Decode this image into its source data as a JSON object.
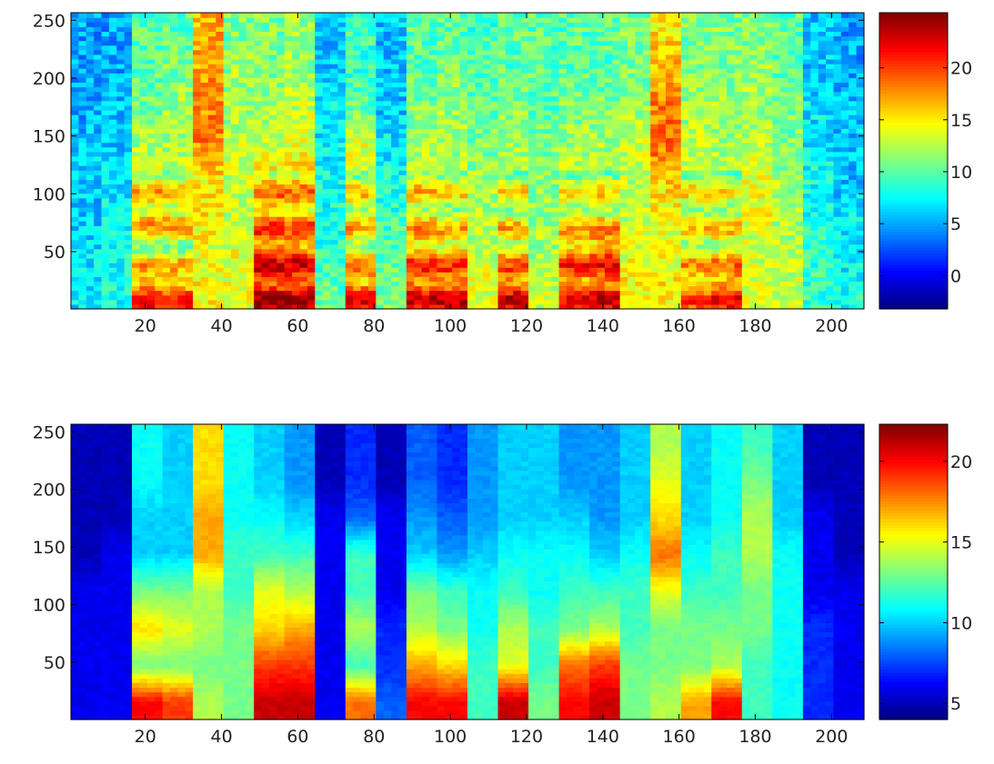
{
  "chart_data": [
    {
      "type": "heatmap",
      "xlim": [
        0.5,
        208.5
      ],
      "ylim": [
        0.5,
        256.5
      ],
      "xticks": [
        "20",
        "40",
        "60",
        "80",
        "100",
        "120",
        "140",
        "160",
        "180",
        "200"
      ],
      "yticks": [
        "50",
        "100",
        "150",
        "200",
        "250"
      ],
      "colormap": "jet",
      "clim": [
        -3.2,
        25.3
      ],
      "colorbar_ticks": [
        "0",
        "5",
        "10",
        "15",
        "20"
      ],
      "x_centers": [
        4,
        12,
        20,
        28,
        36,
        44,
        52,
        60,
        68,
        76,
        84,
        92,
        100,
        108,
        116,
        124,
        132,
        140,
        148,
        156,
        164,
        172,
        180,
        188,
        196,
        204
      ],
      "y_centers": [
        16,
        48,
        80,
        112,
        144,
        176,
        208,
        240
      ],
      "values_by_column": [
        [
          7,
          7,
          6,
          6,
          6,
          5,
          5,
          5
        ],
        [
          8,
          8,
          7,
          7,
          6,
          6,
          5,
          5
        ],
        [
          20,
          13,
          16,
          14,
          12,
          11,
          10,
          10
        ],
        [
          19,
          13,
          16,
          14,
          12,
          12,
          11,
          10
        ],
        [
          15,
          14,
          15,
          15,
          18,
          18,
          17,
          17
        ],
        [
          14,
          14,
          13,
          13,
          13,
          12,
          12,
          11
        ],
        [
          22,
          20,
          18,
          16,
          13,
          12,
          11,
          11
        ],
        [
          22,
          20,
          17,
          16,
          14,
          13,
          12,
          12
        ],
        [
          10,
          9,
          8,
          8,
          7,
          7,
          6,
          6
        ],
        [
          20,
          14,
          15,
          13,
          14,
          10,
          9,
          9
        ],
        [
          11,
          10,
          9,
          8,
          7,
          6,
          6,
          6
        ],
        [
          21,
          18,
          15,
          14,
          12,
          11,
          10,
          10
        ],
        [
          21,
          17,
          14,
          13,
          12,
          12,
          11,
          10
        ],
        [
          14,
          13,
          12,
          12,
          11,
          10,
          10,
          9
        ],
        [
          21,
          16,
          14,
          13,
          12,
          11,
          10,
          10
        ],
        [
          13,
          12,
          12,
          11,
          11,
          10,
          10,
          10
        ],
        [
          20,
          18,
          14,
          13,
          12,
          11,
          10,
          10
        ],
        [
          21,
          19,
          15,
          13,
          12,
          11,
          10,
          10
        ],
        [
          15,
          14,
          13,
          13,
          13,
          12,
          11,
          11
        ],
        [
          15,
          14,
          14,
          16,
          19,
          18,
          17,
          15
        ],
        [
          18,
          14,
          14,
          13,
          13,
          12,
          11,
          11
        ],
        [
          20,
          15,
          14,
          13,
          12,
          12,
          11,
          11
        ],
        [
          14,
          13,
          14,
          14,
          13,
          12,
          12,
          11
        ],
        [
          13,
          13,
          12,
          12,
          11,
          11,
          10,
          10
        ],
        [
          9,
          9,
          8,
          8,
          7,
          7,
          6,
          6
        ],
        [
          8,
          7,
          7,
          6,
          6,
          6,
          5,
          5
        ]
      ]
    },
    {
      "type": "heatmap",
      "xlim": [
        0.5,
        208.5
      ],
      "ylim": [
        0.5,
        256.5
      ],
      "xticks": [
        "20",
        "40",
        "60",
        "80",
        "100",
        "120",
        "140",
        "160",
        "180",
        "200"
      ],
      "yticks": [
        "50",
        "100",
        "150",
        "200",
        "250"
      ],
      "colormap": "jet",
      "clim": [
        4.0,
        22.3
      ],
      "colorbar_ticks": [
        "5",
        "10",
        "15",
        "20"
      ],
      "x_centers": [
        4,
        12,
        20,
        28,
        36,
        44,
        52,
        60,
        68,
        76,
        84,
        92,
        100,
        108,
        116,
        124,
        132,
        140,
        148,
        156,
        164,
        172,
        180,
        188,
        196,
        204
      ],
      "y_centers": [
        16,
        48,
        80,
        112,
        144,
        176,
        208,
        240
      ],
      "values_by_column": [
        [
          6,
          6,
          6,
          6,
          5,
          5,
          5,
          5
        ],
        [
          6,
          6,
          6,
          6,
          6,
          5,
          5,
          5
        ],
        [
          20,
          13,
          16,
          13,
          10,
          10,
          11,
          11
        ],
        [
          19,
          13,
          15,
          13,
          10,
          10,
          10,
          10
        ],
        [
          14,
          13,
          14,
          14,
          17,
          17,
          16,
          16
        ],
        [
          13,
          13,
          13,
          12,
          12,
          11,
          11,
          11
        ],
        [
          21,
          19,
          16,
          15,
          12,
          11,
          10,
          10
        ],
        [
          21,
          19,
          17,
          14,
          12,
          10,
          9,
          9
        ],
        [
          6,
          6,
          6,
          6,
          6,
          6,
          5,
          5
        ],
        [
          18,
          12,
          14,
          12,
          12,
          8,
          7,
          7
        ],
        [
          8,
          7,
          7,
          6,
          6,
          6,
          5,
          5
        ],
        [
          20,
          17,
          14,
          13,
          10,
          9,
          8,
          8
        ],
        [
          20,
          16,
          13,
          12,
          9,
          8,
          7,
          7
        ],
        [
          12,
          12,
          11,
          11,
          10,
          9,
          9,
          9
        ],
        [
          21,
          15,
          14,
          12,
          11,
          10,
          10,
          10
        ],
        [
          13,
          12,
          12,
          11,
          11,
          10,
          10,
          10
        ],
        [
          20,
          18,
          13,
          12,
          11,
          10,
          9,
          9
        ],
        [
          21,
          19,
          14,
          12,
          10,
          9,
          9,
          9
        ],
        [
          13,
          13,
          12,
          12,
          11,
          10,
          10,
          10
        ],
        [
          14,
          13,
          13,
          15,
          18,
          16,
          15,
          14
        ],
        [
          17,
          13,
          13,
          12,
          11,
          10,
          10,
          10
        ],
        [
          20,
          14,
          13,
          12,
          12,
          11,
          11,
          11
        ],
        [
          12,
          12,
          13,
          13,
          14,
          14,
          13,
          12
        ],
        [
          11,
          11,
          11,
          11,
          11,
          10,
          10,
          10
        ],
        [
          7,
          7,
          7,
          6,
          6,
          6,
          5,
          5
        ],
        [
          6,
          6,
          6,
          6,
          5,
          5,
          5,
          5
        ]
      ]
    }
  ]
}
